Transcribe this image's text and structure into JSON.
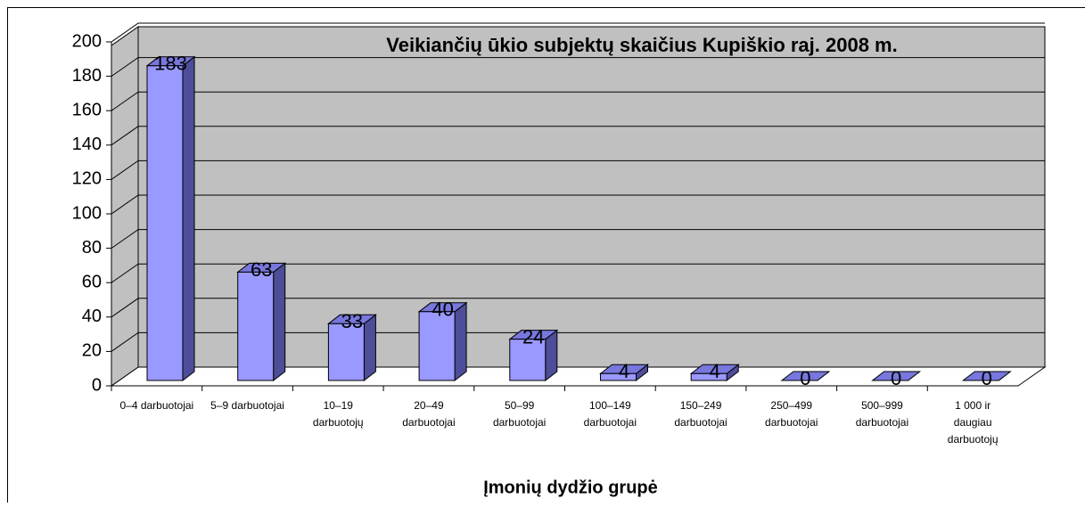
{
  "chart_data": {
    "type": "bar3d",
    "title": "Veikiančių ūkio subjektų skaičius Kupiškio raj.  2008 m.",
    "x_label": "Įmonių dydžio grupė",
    "categories": [
      "0–4 darbuotojai",
      "5–9 darbuotojai",
      "10–19\ndarbuotojų",
      "20–49\ndarbuotojai",
      "50–99\ndarbuotojai",
      "100–149\ndarbuotojai",
      "150–249\ndarbuotojai",
      "250–499\ndarbuotojai",
      "500–999\ndarbuotojai",
      "1 000 ir\ndaugiau\ndarbuotojų"
    ],
    "values": [
      183,
      63,
      33,
      40,
      24,
      4,
      4,
      0,
      0,
      0
    ],
    "color": "#9999ff",
    "ylim": [
      0,
      200
    ],
    "yticks": [
      0,
      20,
      40,
      60,
      80,
      100,
      120,
      140,
      160,
      180,
      200
    ],
    "grid": true
  }
}
